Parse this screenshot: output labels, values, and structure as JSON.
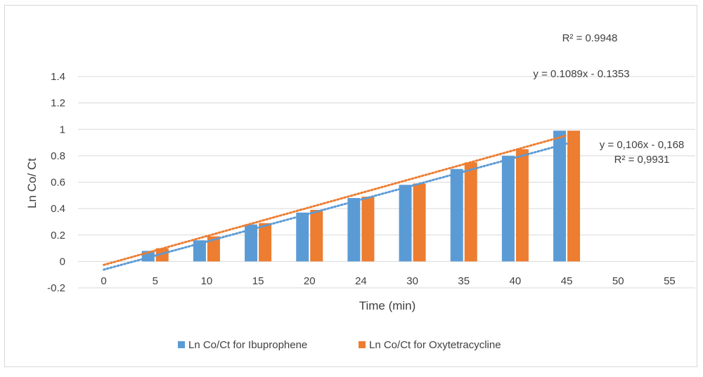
{
  "chart_data": {
    "type": "bar",
    "title": "",
    "xlabel": "Time (min)",
    "ylabel": "Ln Co/ Ct",
    "categories": [
      "0",
      "5",
      "10",
      "15",
      "20",
      "24",
      "30",
      "35",
      "40",
      "45",
      "50",
      "55"
    ],
    "yticks": [
      "-0.2",
      "0",
      "0.2",
      "0.4",
      "0.6",
      "0.8",
      "1",
      "1.2",
      "1.4"
    ],
    "ylim": [
      -0.2,
      1.4
    ],
    "grid": true,
    "legend_position": "bottom",
    "series": [
      {
        "name": "Ln Co/Ct for Ibuprophene",
        "color": "#5b9bd5",
        "values": [
          null,
          0.08,
          0.16,
          0.28,
          0.37,
          0.48,
          0.58,
          0.7,
          0.8,
          0.99,
          null,
          null
        ]
      },
      {
        "name": "Ln Co/Ct for Oxytetracycline",
        "color": "#ed7d31",
        "values": [
          null,
          0.1,
          0.19,
          0.29,
          0.39,
          0.49,
          0.59,
          0.75,
          0.85,
          0.99,
          null,
          null
        ]
      }
    ],
    "trendlines": [
      {
        "series": "Ln Co/Ct for Ibuprophene",
        "style": "dotted",
        "color": "#5b9bd5",
        "slope": 0.106,
        "intercept": -0.168,
        "equation": "y = 0,106x - 0,168",
        "r2": "R² = 0,9931"
      },
      {
        "series": "Ln Co/Ct for Oxytetracycline",
        "style": "dotted",
        "color": "#ed7d31",
        "slope": 0.1089,
        "intercept": -0.1353,
        "equation": "y = 0.1089x - 0.1353",
        "r2": "R² = 0.9948"
      }
    ]
  }
}
